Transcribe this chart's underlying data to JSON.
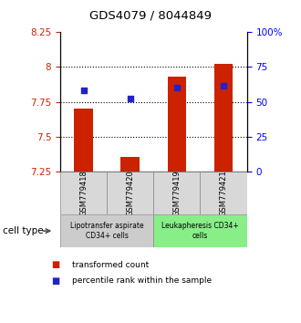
{
  "title": "GDS4079 / 8044849",
  "samples": [
    "GSM779418",
    "GSM779420",
    "GSM779419",
    "GSM779421"
  ],
  "bar_bottoms": [
    7.25,
    7.25,
    7.25,
    7.25
  ],
  "bar_tops": [
    7.7,
    7.35,
    7.93,
    8.02
  ],
  "blue_values": [
    7.83,
    7.77,
    7.855,
    7.862
  ],
  "ylim_left": [
    7.25,
    8.25
  ],
  "ylim_right": [
    0,
    100
  ],
  "yticks_left": [
    7.25,
    7.5,
    7.75,
    8.0,
    8.25
  ],
  "ytick_labels_left": [
    "7.25",
    "7.5",
    "7.75",
    "8",
    "8.25"
  ],
  "yticks_right": [
    0,
    25,
    50,
    75,
    100
  ],
  "ytick_labels_right": [
    "0",
    "25",
    "50",
    "75",
    "100%"
  ],
  "hlines": [
    7.5,
    7.75,
    8.0
  ],
  "bar_color": "#cc2200",
  "blue_color": "#2222cc",
  "cell_groups": [
    {
      "label": "Lipotransfer aspirate\nCD34+ cells",
      "count": 2,
      "color": "#cccccc"
    },
    {
      "label": "Leukapheresis CD34+\ncells",
      "count": 2,
      "color": "#88ee88"
    }
  ],
  "cell_type_label": "cell type",
  "legend_red": "transformed count",
  "legend_blue": "percentile rank within the sample"
}
